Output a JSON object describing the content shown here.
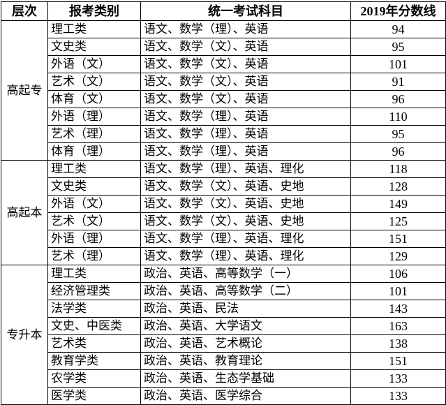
{
  "headers": [
    "层次",
    "报考类别",
    "统一考试科目",
    "2019年分数线"
  ],
  "groups": [
    {
      "level": "高起专",
      "rows": [
        [
          "理工类",
          "语文、数学（理）、英语",
          "94"
        ],
        [
          "文史类",
          "语文、数学（文）、英语",
          "95"
        ],
        [
          "外语（文）",
          "语文、数学（文）、英语",
          "101"
        ],
        [
          "艺术（文）",
          "语文、数学（文）、英语",
          "91"
        ],
        [
          "体育（文）",
          "语文、数学（文）、英语",
          "96"
        ],
        [
          "外语（理）",
          "语文、数学（理）、英语",
          "110"
        ],
        [
          "艺术（理）",
          "语文、数学（理）、英语",
          "95"
        ],
        [
          "体育（理）",
          "语文、数学（理）、英语",
          "96"
        ]
      ]
    },
    {
      "level": "高起本",
      "rows": [
        [
          "理工类",
          "语文、数学（理）、英语、理化",
          "118"
        ],
        [
          "文史类",
          "语文、数学（文）、英语、史地",
          "128"
        ],
        [
          "外语（文）",
          "语文、数学（文）、英语、史地",
          "149"
        ],
        [
          "艺术（文）",
          "语文、数学（文）、英语、史地",
          "125"
        ],
        [
          "外语（理）",
          "语文、数学（理）、英语、理化",
          "151"
        ],
        [
          "艺术（理）",
          "语文、数学（理）、英语、理化",
          "129"
        ]
      ]
    },
    {
      "level": "专升本",
      "rows": [
        [
          "理工类",
          "政治、英语、高等数学（一）",
          "106"
        ],
        [
          "经济管理类",
          "政治、英语、高等数学（二）",
          "101"
        ],
        [
          "法学类",
          "政治、英语、民法",
          "143"
        ],
        [
          "文史、中医类",
          "政治、英语、大学语文",
          "163"
        ],
        [
          "艺术类",
          "政治、英语、艺术概论",
          "138"
        ],
        [
          "教育学类",
          "政治、英语、教育理论",
          "151"
        ],
        [
          "农学类",
          "政治、英语、生态学基础",
          "133"
        ],
        [
          "医学类",
          "政治、英语、医学综合",
          "133"
        ]
      ]
    }
  ]
}
